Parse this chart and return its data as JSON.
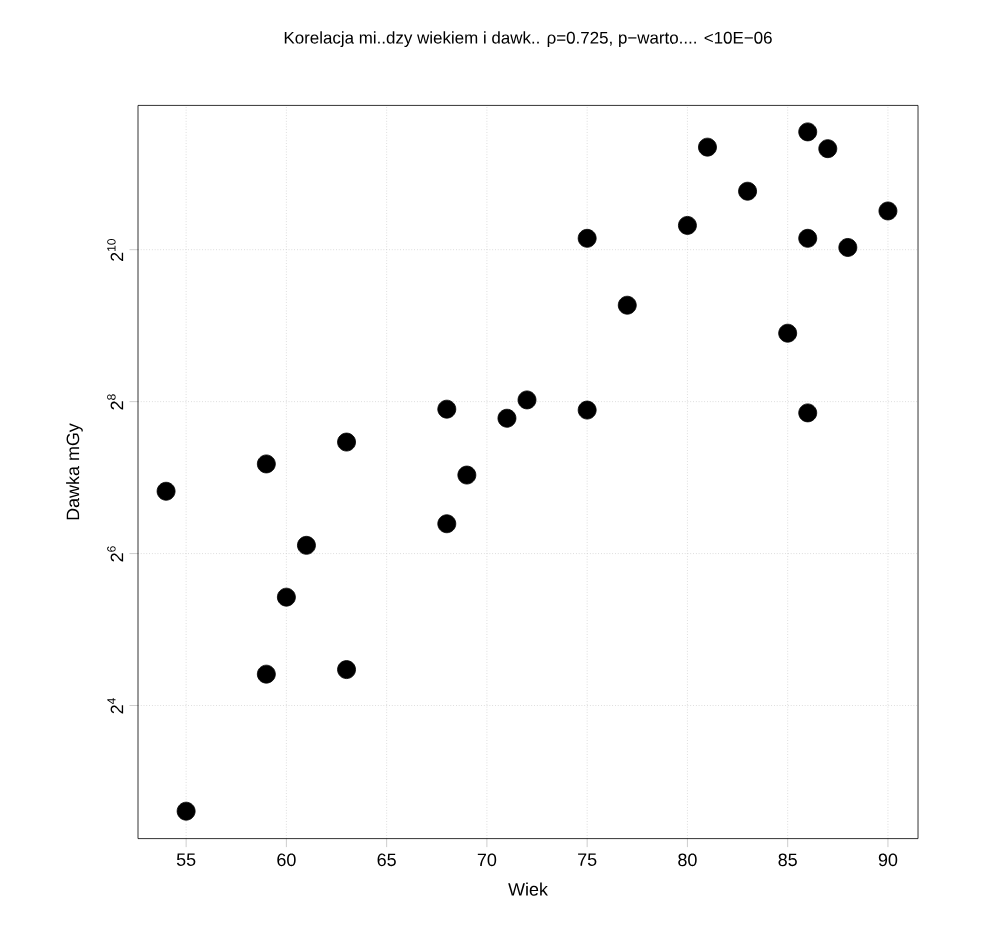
{
  "chart_data": {
    "type": "scatter",
    "title": "Korelacja mi..dzy wiekiem i dawk.. ρ=0.725, p−warto.... <10E−06",
    "xlabel": "Wiek",
    "ylabel": "Dawka mGy",
    "x": [
      54,
      55,
      59,
      59,
      60,
      61,
      63,
      63,
      68,
      68,
      69,
      71,
      72,
      75,
      75,
      77,
      80,
      81,
      83,
      85,
      86,
      86,
      86,
      87,
      88,
      90
    ],
    "values": [
      113,
      6.1,
      145,
      21.3,
      43,
      69,
      177,
      22.2,
      239,
      84,
      131,
      220,
      260,
      1136,
      237,
      617,
      1278,
      2610,
      1746,
      478,
      3000,
      1136,
      231,
      2574,
      1045,
      1458
    ],
    "color": "#000000",
    "log": "y",
    "grid": true,
    "xlim": [
      52.6,
      91.5
    ],
    "ylim": [
      4.75,
      3820
    ],
    "xticks": [
      55,
      60,
      65,
      70,
      75,
      80,
      85,
      90
    ],
    "yticks": [
      {
        "value": 16,
        "label": "2$^{4}$"
      },
      {
        "value": 64,
        "label": "2$^{6}$"
      },
      {
        "value": 256,
        "label": "2$^{8}$"
      },
      {
        "value": 1024,
        "label": "2$^{10}$"
      }
    ]
  }
}
